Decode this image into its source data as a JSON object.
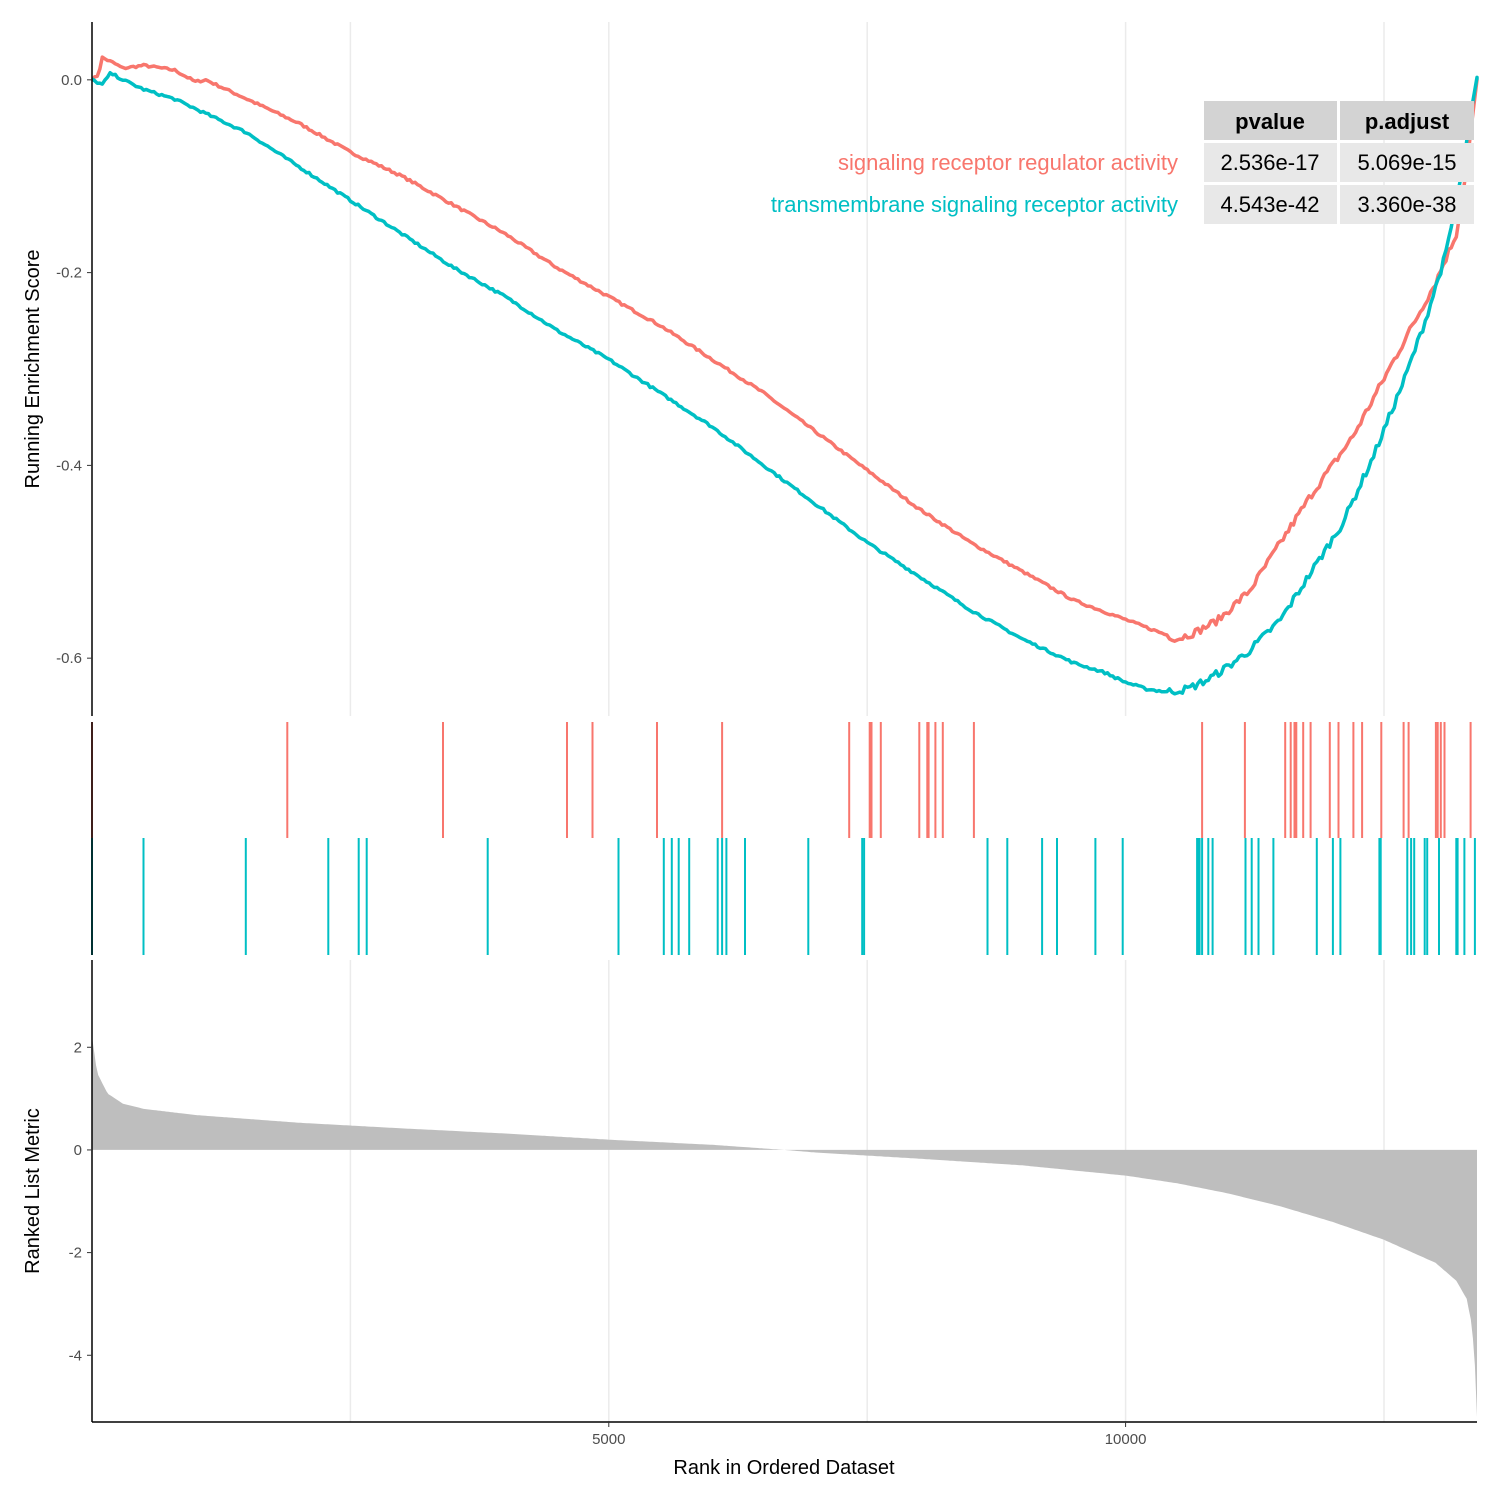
{
  "colors": {
    "series1": "#F8766D",
    "series2": "#00BFC4",
    "metric_fill": "#BEBEBE",
    "grid": "#EBEBEB",
    "axis": "#000000",
    "table_header": "#D3D3D3",
    "table_cell": "#E8E8E8"
  },
  "chart_data": {
    "type": "line",
    "xlabel": "Rank in Ordered Dataset",
    "x_ticks": [
      5000,
      10000
    ],
    "x_tick_labels": [
      "5000",
      "10000"
    ],
    "xlim": [
      0,
      13400
    ],
    "grid": "vertical",
    "panels": {
      "enrichment": {
        "ylabel": "Running Enrichment Score",
        "ylim": [
          -0.66,
          0.06
        ],
        "y_ticks": [
          0.0,
          -0.2,
          -0.4,
          -0.6
        ],
        "y_tick_labels": [
          "0.0",
          "-0.2",
          "-0.4",
          "-0.6"
        ]
      },
      "hits": {
        "description": "gene set membership rug per series"
      },
      "metric": {
        "ylabel": "Ranked List Metric",
        "ylim": [
          -5.3,
          3.7
        ],
        "y_ticks": [
          2,
          0,
          -2,
          -4
        ],
        "y_tick_labels": [
          "2",
          "0",
          "-2",
          "-4"
        ],
        "x": [
          0,
          50,
          150,
          300,
          500,
          1000,
          2000,
          3000,
          4000,
          5000,
          6000,
          6700,
          7000,
          8000,
          9000,
          10000,
          10500,
          11000,
          11500,
          12000,
          12500,
          13000,
          13200,
          13300,
          13350,
          13380,
          13400
        ],
        "values": [
          2.2,
          1.5,
          1.1,
          0.9,
          0.8,
          0.68,
          0.53,
          0.42,
          0.32,
          0.2,
          0.1,
          0.0,
          -0.05,
          -0.17,
          -0.3,
          -0.5,
          -0.65,
          -0.85,
          -1.1,
          -1.4,
          -1.75,
          -2.2,
          -2.55,
          -2.9,
          -3.4,
          -4.2,
          -5.2
        ]
      }
    },
    "series": [
      {
        "name": "signaling receptor regulator activity",
        "x": [
          0,
          60,
          100,
          200,
          300,
          500,
          800,
          1000,
          1100,
          1300,
          1500,
          2000,
          2500,
          3000,
          3500,
          4000,
          4500,
          5000,
          5500,
          6000,
          6500,
          7000,
          7500,
          8000,
          8500,
          9000,
          9500,
          10000,
          10300,
          10500,
          10700,
          10900,
          11200,
          11500,
          11800,
          12200,
          12500,
          12800,
          13000,
          13200,
          13300,
          13380,
          13400
        ],
        "values": [
          0.0,
          0.005,
          0.023,
          0.018,
          0.012,
          0.015,
          0.01,
          -0.002,
          0.0,
          -0.01,
          -0.02,
          -0.045,
          -0.075,
          -0.1,
          -0.13,
          -0.16,
          -0.195,
          -0.225,
          -0.255,
          -0.29,
          -0.325,
          -0.365,
          -0.405,
          -0.445,
          -0.48,
          -0.51,
          -0.54,
          -0.56,
          -0.572,
          -0.58,
          -0.572,
          -0.56,
          -0.53,
          -0.48,
          -0.43,
          -0.37,
          -0.31,
          -0.25,
          -0.21,
          -0.16,
          -0.09,
          -0.02,
          0.0
        ]
      },
      {
        "name": "transmembrane signaling receptor activity",
        "x": [
          0,
          100,
          180,
          300,
          500,
          800,
          1000,
          1200,
          1500,
          2000,
          2500,
          3000,
          3500,
          4000,
          4500,
          5000,
          5500,
          6000,
          6500,
          7000,
          7500,
          8000,
          8500,
          9000,
          9500,
          9800,
          10000,
          10200,
          10400,
          10600,
          10800,
          11000,
          11200,
          11500,
          11800,
          12100,
          12400,
          12700,
          12900,
          13100,
          13250,
          13350,
          13400
        ],
        "values": [
          0.0,
          -0.005,
          0.007,
          0.0,
          -0.01,
          -0.02,
          -0.03,
          -0.04,
          -0.055,
          -0.09,
          -0.125,
          -0.16,
          -0.195,
          -0.225,
          -0.26,
          -0.29,
          -0.325,
          -0.36,
          -0.4,
          -0.44,
          -0.48,
          -0.515,
          -0.55,
          -0.58,
          -0.605,
          -0.615,
          -0.625,
          -0.632,
          -0.635,
          -0.632,
          -0.622,
          -0.608,
          -0.592,
          -0.56,
          -0.51,
          -0.46,
          -0.39,
          -0.31,
          -0.25,
          -0.18,
          -0.1,
          -0.03,
          0.0
        ]
      }
    ],
    "table": {
      "columns": [
        "pvalue",
        "p.adjust"
      ],
      "rows": [
        {
          "name": "signaling receptor regulator activity",
          "values": [
            "2.536e-17",
            "5.069e-15"
          ]
        },
        {
          "name": "transmembrane signaling receptor activity",
          "values": [
            "4.543e-42",
            "3.360e-38"
          ]
        }
      ]
    }
  }
}
